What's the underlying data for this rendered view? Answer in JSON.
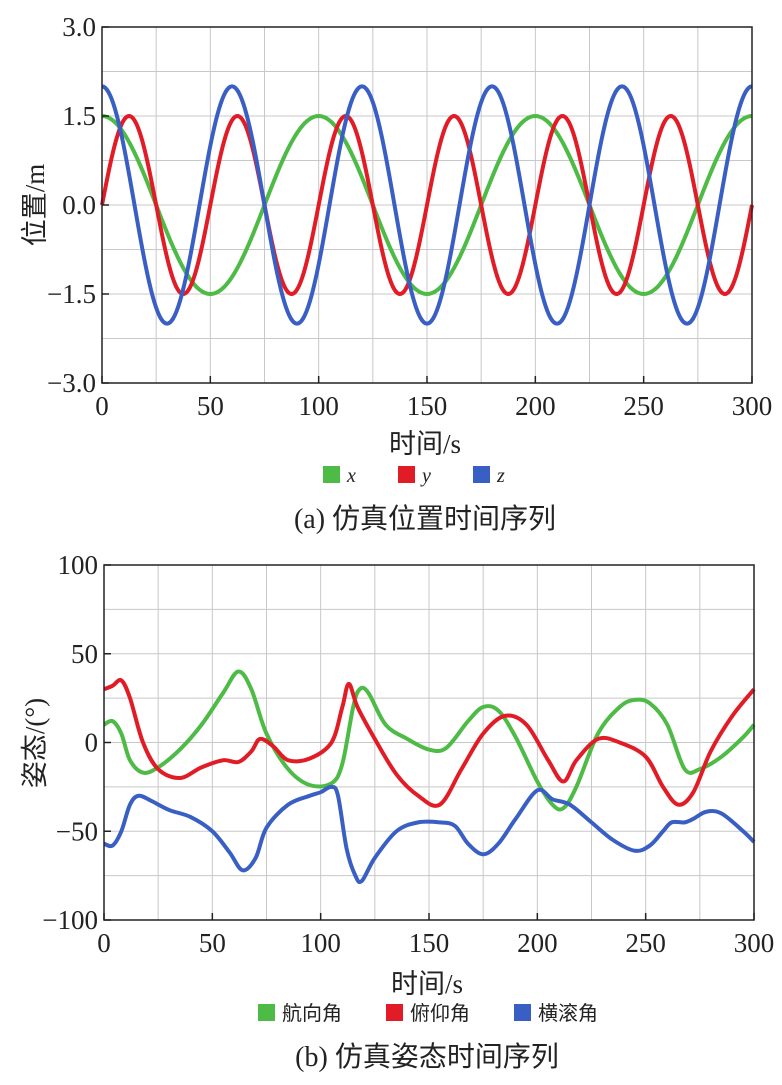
{
  "chart_data": [
    {
      "type": "line",
      "caption": "(a) 仿真位置时间序列",
      "xlabel": "时间/s",
      "ylabel": "位置/m",
      "xlim": [
        0,
        300
      ],
      "ylim": [
        -3.0,
        3.0
      ],
      "xticks": [
        0,
        50,
        100,
        150,
        200,
        250,
        300
      ],
      "xtick_labels": [
        "0",
        "50",
        "100",
        "150",
        "200",
        "250",
        "300"
      ],
      "yticks": [
        -3.0,
        -1.5,
        0.0,
        1.5,
        3.0
      ],
      "ytick_labels": [
        "−3.0",
        "−1.5",
        "0.0",
        "1.5",
        "3.0"
      ],
      "grid": true,
      "legend_position": "bottom",
      "series": [
        {
          "name": "x",
          "color": "#4dbb46",
          "x": [
            0,
            25,
            50,
            75,
            100,
            125,
            150,
            175,
            200,
            225,
            250,
            275,
            300
          ],
          "values": [
            1.5,
            0,
            -1.5,
            0,
            1.5,
            0,
            -1.5,
            0,
            1.5,
            0,
            -1.5,
            0,
            1.5
          ]
        },
        {
          "name": "y",
          "color": "#e21c26",
          "x": [
            0,
            12.5,
            25,
            37.5,
            50,
            62.5,
            75,
            87.5,
            100,
            112.5,
            125,
            137.5,
            150,
            162.5,
            175,
            187.5,
            200,
            212.5,
            225,
            237.5,
            250,
            262.5,
            275,
            287.5,
            300
          ],
          "values": [
            0,
            1.5,
            0,
            -1.5,
            0,
            1.5,
            0,
            -1.5,
            0,
            1.5,
            0,
            -1.5,
            0,
            1.5,
            0,
            -1.5,
            0,
            1.5,
            0,
            -1.5,
            0,
            1.5,
            0,
            -1.5,
            0
          ]
        },
        {
          "name": "z",
          "color": "#3a5fc4",
          "x": [
            0,
            15,
            30,
            45,
            60,
            75,
            90,
            105,
            120,
            135,
            150,
            165,
            180,
            195,
            210,
            225,
            240,
            255,
            270,
            285,
            300
          ],
          "values": [
            2,
            0,
            -2,
            0,
            2,
            0,
            -2,
            0,
            2,
            0,
            -2,
            0,
            2,
            0,
            -2,
            0,
            2,
            0,
            -2,
            0,
            2
          ]
        }
      ]
    },
    {
      "type": "line",
      "caption": "(b) 仿真姿态时间序列",
      "xlabel": "时间/s",
      "ylabel": "姿态/(°)",
      "xlim": [
        0,
        300
      ],
      "ylim": [
        -100,
        100
      ],
      "xticks": [
        0,
        50,
        100,
        150,
        200,
        250,
        300
      ],
      "xtick_labels": [
        "0",
        "50",
        "100",
        "150",
        "200",
        "250",
        "300"
      ],
      "yticks": [
        -100,
        -50,
        0,
        50,
        100
      ],
      "ytick_labels": [
        "−100",
        "−50",
        "0",
        "50",
        "100"
      ],
      "grid": true,
      "legend_position": "bottom",
      "series": [
        {
          "name": "航向角",
          "color": "#4dbb46",
          "x": [
            0,
            4,
            8,
            12,
            18,
            25,
            35,
            45,
            55,
            62,
            68,
            75,
            85,
            95,
            105,
            110,
            115,
            118,
            122,
            130,
            140,
            150,
            158,
            168,
            175,
            182,
            190,
            200,
            207,
            212,
            218,
            228,
            238,
            245,
            252,
            260,
            268,
            275,
            285,
            295,
            300
          ],
          "values": [
            10,
            12,
            5,
            -10,
            -17,
            -14,
            -4,
            10,
            28,
            40,
            30,
            5,
            -15,
            -24,
            -23,
            -12,
            20,
            30,
            28,
            10,
            2,
            -4,
            -3,
            12,
            20,
            18,
            3,
            -22,
            -35,
            -37,
            -25,
            5,
            20,
            24,
            22,
            10,
            -15,
            -15,
            -8,
            3,
            10
          ]
        },
        {
          "name": "俯仰角",
          "color": "#e21c26",
          "x": [
            0,
            4,
            8,
            12,
            18,
            25,
            35,
            45,
            55,
            62,
            68,
            72,
            78,
            85,
            95,
            105,
            110,
            113,
            117,
            125,
            135,
            145,
            155,
            165,
            175,
            185,
            195,
            205,
            212,
            218,
            228,
            238,
            250,
            258,
            265,
            272,
            280,
            290,
            300
          ],
          "values": [
            30,
            32,
            35,
            25,
            0,
            -15,
            -20,
            -14,
            -10,
            -11,
            -5,
            2,
            -2,
            -10,
            -9,
            0,
            20,
            33,
            20,
            2,
            -18,
            -30,
            -35,
            -15,
            5,
            15,
            10,
            -10,
            -22,
            -10,
            2,
            0,
            -8,
            -25,
            -35,
            -28,
            -5,
            15,
            30
          ]
        },
        {
          "name": "横滚角",
          "color": "#3a5fc4",
          "x": [
            0,
            4,
            8,
            12,
            16,
            22,
            30,
            40,
            50,
            58,
            64,
            70,
            75,
            85,
            95,
            100,
            105,
            108,
            112,
            116,
            119,
            125,
            135,
            145,
            155,
            162,
            168,
            175,
            182,
            190,
            200,
            207,
            215,
            225,
            235,
            245,
            252,
            258,
            262,
            268,
            272,
            278,
            285,
            295,
            300
          ],
          "values": [
            -57,
            -58,
            -50,
            -35,
            -30,
            -33,
            -38,
            -42,
            -50,
            -62,
            -72,
            -65,
            -48,
            -35,
            -30,
            -28,
            -25,
            -30,
            -60,
            -75,
            -78,
            -65,
            -50,
            -45,
            -45,
            -47,
            -57,
            -63,
            -57,
            -43,
            -27,
            -32,
            -35,
            -45,
            -55,
            -61,
            -58,
            -50,
            -45,
            -45,
            -43,
            -39,
            -40,
            -50,
            -56
          ]
        }
      ]
    }
  ]
}
